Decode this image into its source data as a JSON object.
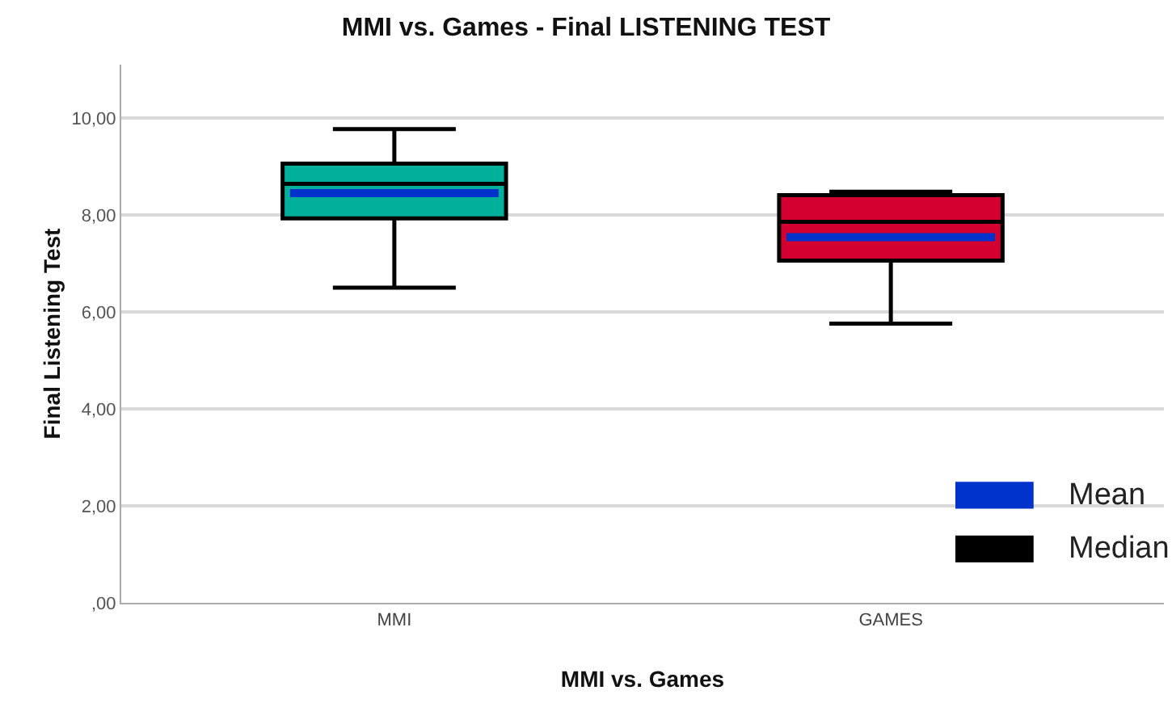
{
  "chart_data": {
    "type": "box",
    "title": "MMI vs. Games - Final LISTENING TEST",
    "xlabel": "MMI vs. Games",
    "ylabel": "Final Listening Test",
    "categories": [
      "MMI",
      "GAMES"
    ],
    "boxes": [
      {
        "low": 6.5,
        "q1": 7.93,
        "median": 8.64,
        "q3": 9.06,
        "high": 9.77,
        "mean": 8.45
      },
      {
        "low": 5.76,
        "q1": 7.06,
        "median": 7.86,
        "q3": 8.41,
        "high": 8.48,
        "mean": 7.54
      }
    ],
    "colors": [
      "#00b09a",
      "#d4002f"
    ],
    "ylim": [
      0,
      11.1
    ],
    "yticks": [
      {
        "value": 0,
        "label": ",00"
      },
      {
        "value": 2,
        "label": "2,00"
      },
      {
        "value": 4,
        "label": "4,00"
      },
      {
        "value": 6,
        "label": "6,00"
      },
      {
        "value": 8,
        "label": "8,00"
      },
      {
        "value": 10,
        "label": "10,00"
      }
    ],
    "grid": "y",
    "annotations": [
      "Mean",
      "Median"
    ]
  }
}
